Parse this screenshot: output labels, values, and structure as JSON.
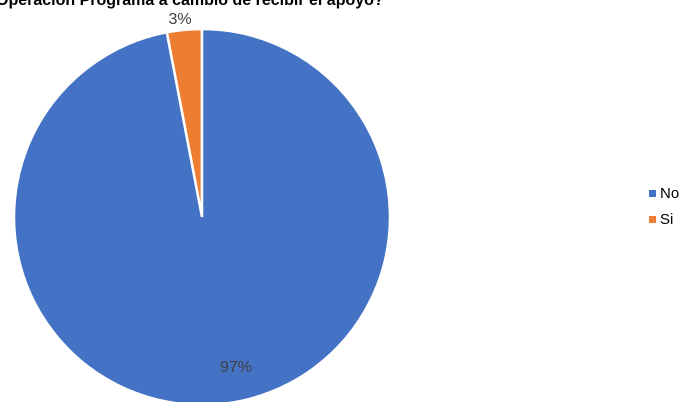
{
  "chart_data": {
    "type": "pie",
    "title": "Operación Programa a cambio de recibir el apoyo?",
    "slices": [
      {
        "label": "No",
        "value": 97,
        "display": "97%",
        "color": "#4472C4"
      },
      {
        "label": "Si",
        "value": 3,
        "display": "3%",
        "color": "#ED7D31"
      }
    ],
    "legend_position": "right"
  }
}
